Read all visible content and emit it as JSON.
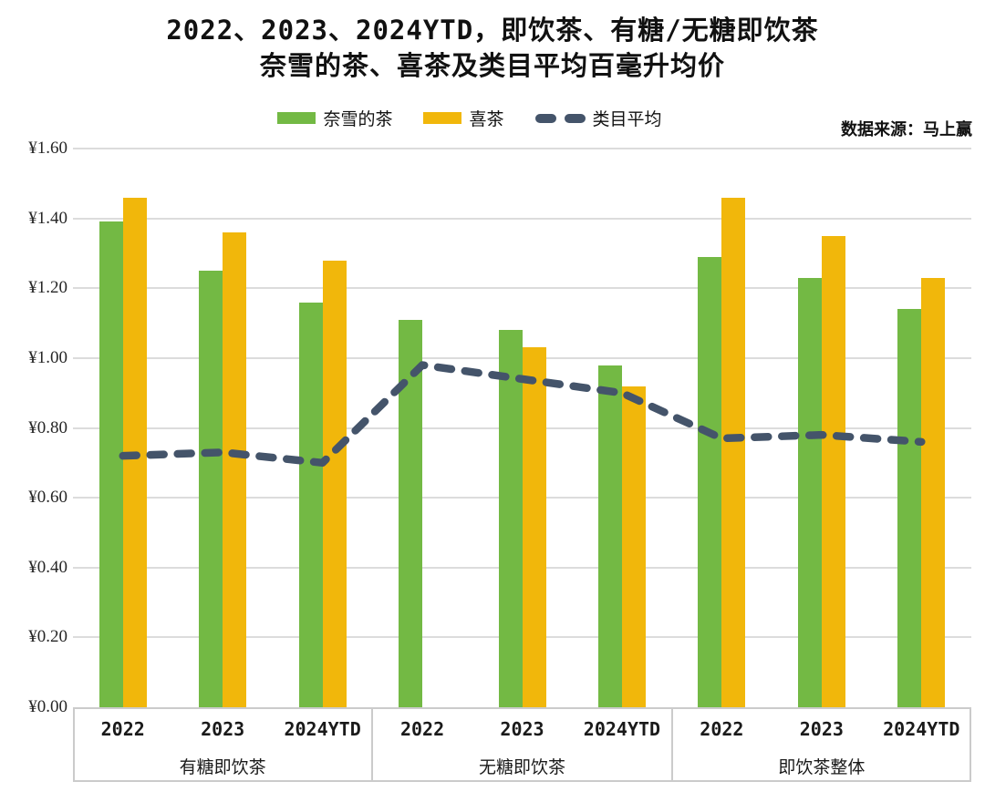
{
  "page": {
    "title_line1": "2022、2023、2024YTD，即饮茶、有糖/无糖即饮茶",
    "title_line2": "奈雪的茶、喜茶及类目平均百毫升均价"
  },
  "legend": {
    "items": [
      {
        "label": "奈雪的茶",
        "swatch": "bar"
      },
      {
        "label": "喜茶",
        "swatch": "bar"
      },
      {
        "label": "类目平均",
        "swatch": "dashed-line"
      }
    ]
  },
  "source": {
    "label": "数据来源：马上赢"
  },
  "colors": {
    "naixue_green": "#73B944",
    "heytea_gold": "#F1B70B",
    "category_avg_slate": "#44546A",
    "gridline_gray": "#DCDCDC",
    "axis_border_gray": "#CBCBCB"
  },
  "chart_data": {
    "type": "bar",
    "title": "2022、2023、2024YTD，即饮茶、有糖/无糖即饮茶 奈雪的茶、喜茶及类目平均百毫升均价",
    "currency_prefix": "¥",
    "ylim": [
      0,
      1.6
    ],
    "ytick_step": 0.2,
    "grid": true,
    "legend_position": "top",
    "groups": [
      {
        "label": "有糖即饮茶",
        "years": [
          "2022",
          "2023",
          "2024YTD"
        ]
      },
      {
        "label": "无糖即饮茶",
        "years": [
          "2022",
          "2023",
          "2024YTD"
        ]
      },
      {
        "label": "即饮茶整体",
        "years": [
          "2022",
          "2023",
          "2024YTD"
        ]
      }
    ],
    "categories": [
      "2022",
      "2023",
      "2024YTD",
      "2022",
      "2023",
      "2024YTD",
      "2022",
      "2023",
      "2024YTD"
    ],
    "series": [
      {
        "name": "奈雪的茶",
        "type": "bar",
        "color": "#73B944",
        "values": [
          1.39,
          1.25,
          1.16,
          1.11,
          1.08,
          0.98,
          1.29,
          1.23,
          1.14
        ]
      },
      {
        "name": "喜茶",
        "type": "bar",
        "color": "#F1B70B",
        "values": [
          1.46,
          1.36,
          1.28,
          null,
          1.03,
          0.92,
          1.46,
          1.35,
          1.23
        ]
      },
      {
        "name": "类目平均",
        "type": "dashed_line",
        "color": "#44546A",
        "values": [
          0.72,
          0.73,
          0.7,
          0.98,
          0.94,
          0.9,
          0.77,
          0.78,
          0.76
        ]
      }
    ]
  }
}
